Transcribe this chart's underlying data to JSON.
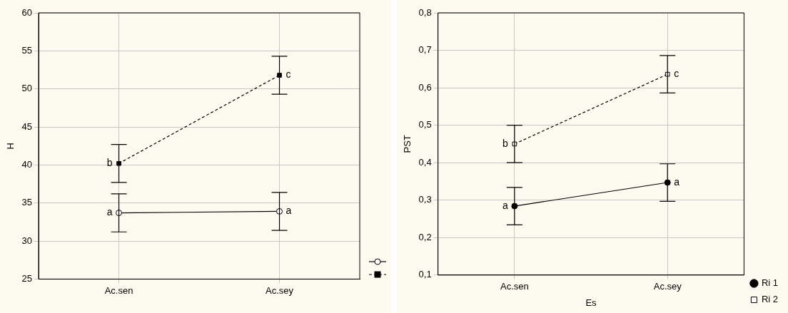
{
  "chart_data": [
    {
      "type": "line",
      "ylabel": "H",
      "categories": [
        "Ac.sen",
        "Ac.sey"
      ],
      "series": [
        {
          "color": "#000000",
          "colors": [
            "#ffffff",
            "#ffffff"
          ],
          "marker": "circle",
          "line_style": "solid",
          "values": [
            33.7,
            33.9
          ],
          "errors": [
            2.5,
            2.5
          ]
        },
        {
          "color": "#000000",
          "colors": [
            "#000000",
            "#000000"
          ],
          "marker": "square",
          "line_style": "dashed",
          "values": [
            40.2,
            51.8
          ],
          "errors": [
            2.5,
            2.5
          ]
        }
      ],
      "ylim": [
        25,
        60
      ],
      "yticks": [
        25,
        30,
        35,
        40,
        45,
        50,
        55,
        60
      ],
      "grid": true,
      "legend": "bottom right",
      "annotations": [
        {
          "text": "a",
          "x": "Ac.sen",
          "y": 33.7
        },
        {
          "text": "a",
          "x": "Ac.sey",
          "y": 33.9
        },
        {
          "text": "b",
          "x": "Ac.sen",
          "y": 40.2
        },
        {
          "text": "c",
          "x": "Ac.sey",
          "y": 51.8
        }
      ]
    },
    {
      "type": "line",
      "xlabel": "Es",
      "ylabel": "PST",
      "categories": [
        "Ac.sen",
        "Ac.sey"
      ],
      "series": [
        {
          "name": "Ri 1",
          "color": "#000000",
          "colors": [
            "#000000",
            "#000000"
          ],
          "marker": "circle",
          "line_style": "solid",
          "values": [
            0.284,
            0.347
          ],
          "errors": [
            0.05,
            0.05
          ]
        },
        {
          "name": "Ri 2",
          "color": "#000000",
          "colors": [
            "#ffffff",
            "#ffffff"
          ],
          "marker": "square",
          "line_style": "dashed",
          "values": [
            0.45,
            0.636
          ],
          "errors": [
            0.05,
            0.05
          ]
        }
      ],
      "ylim": [
        0.1,
        0.8
      ],
      "yticks": [
        {
          "value": 0.1,
          "label": "0,1"
        },
        {
          "value": 0.2,
          "label": "0,2"
        },
        {
          "value": 0.3,
          "label": "0,3"
        },
        {
          "value": 0.4,
          "label": "0,4"
        },
        {
          "value": 0.5,
          "label": "0,5"
        },
        {
          "value": 0.6,
          "label": "0,6"
        },
        {
          "value": 0.7,
          "label": "0,7"
        },
        {
          "value": 0.8,
          "label": "0,8"
        }
      ],
      "grid": true,
      "legend": "bottom right",
      "annotations": [
        {
          "text": "a",
          "x": "Ac.sen",
          "y": 0.284
        },
        {
          "text": "a",
          "x": "Ac.sey",
          "y": 0.347
        },
        {
          "text": "b",
          "x": "Ac.sen",
          "y": 0.45
        },
        {
          "text": "c",
          "x": "Ac.sey",
          "y": 0.636
        }
      ]
    }
  ]
}
